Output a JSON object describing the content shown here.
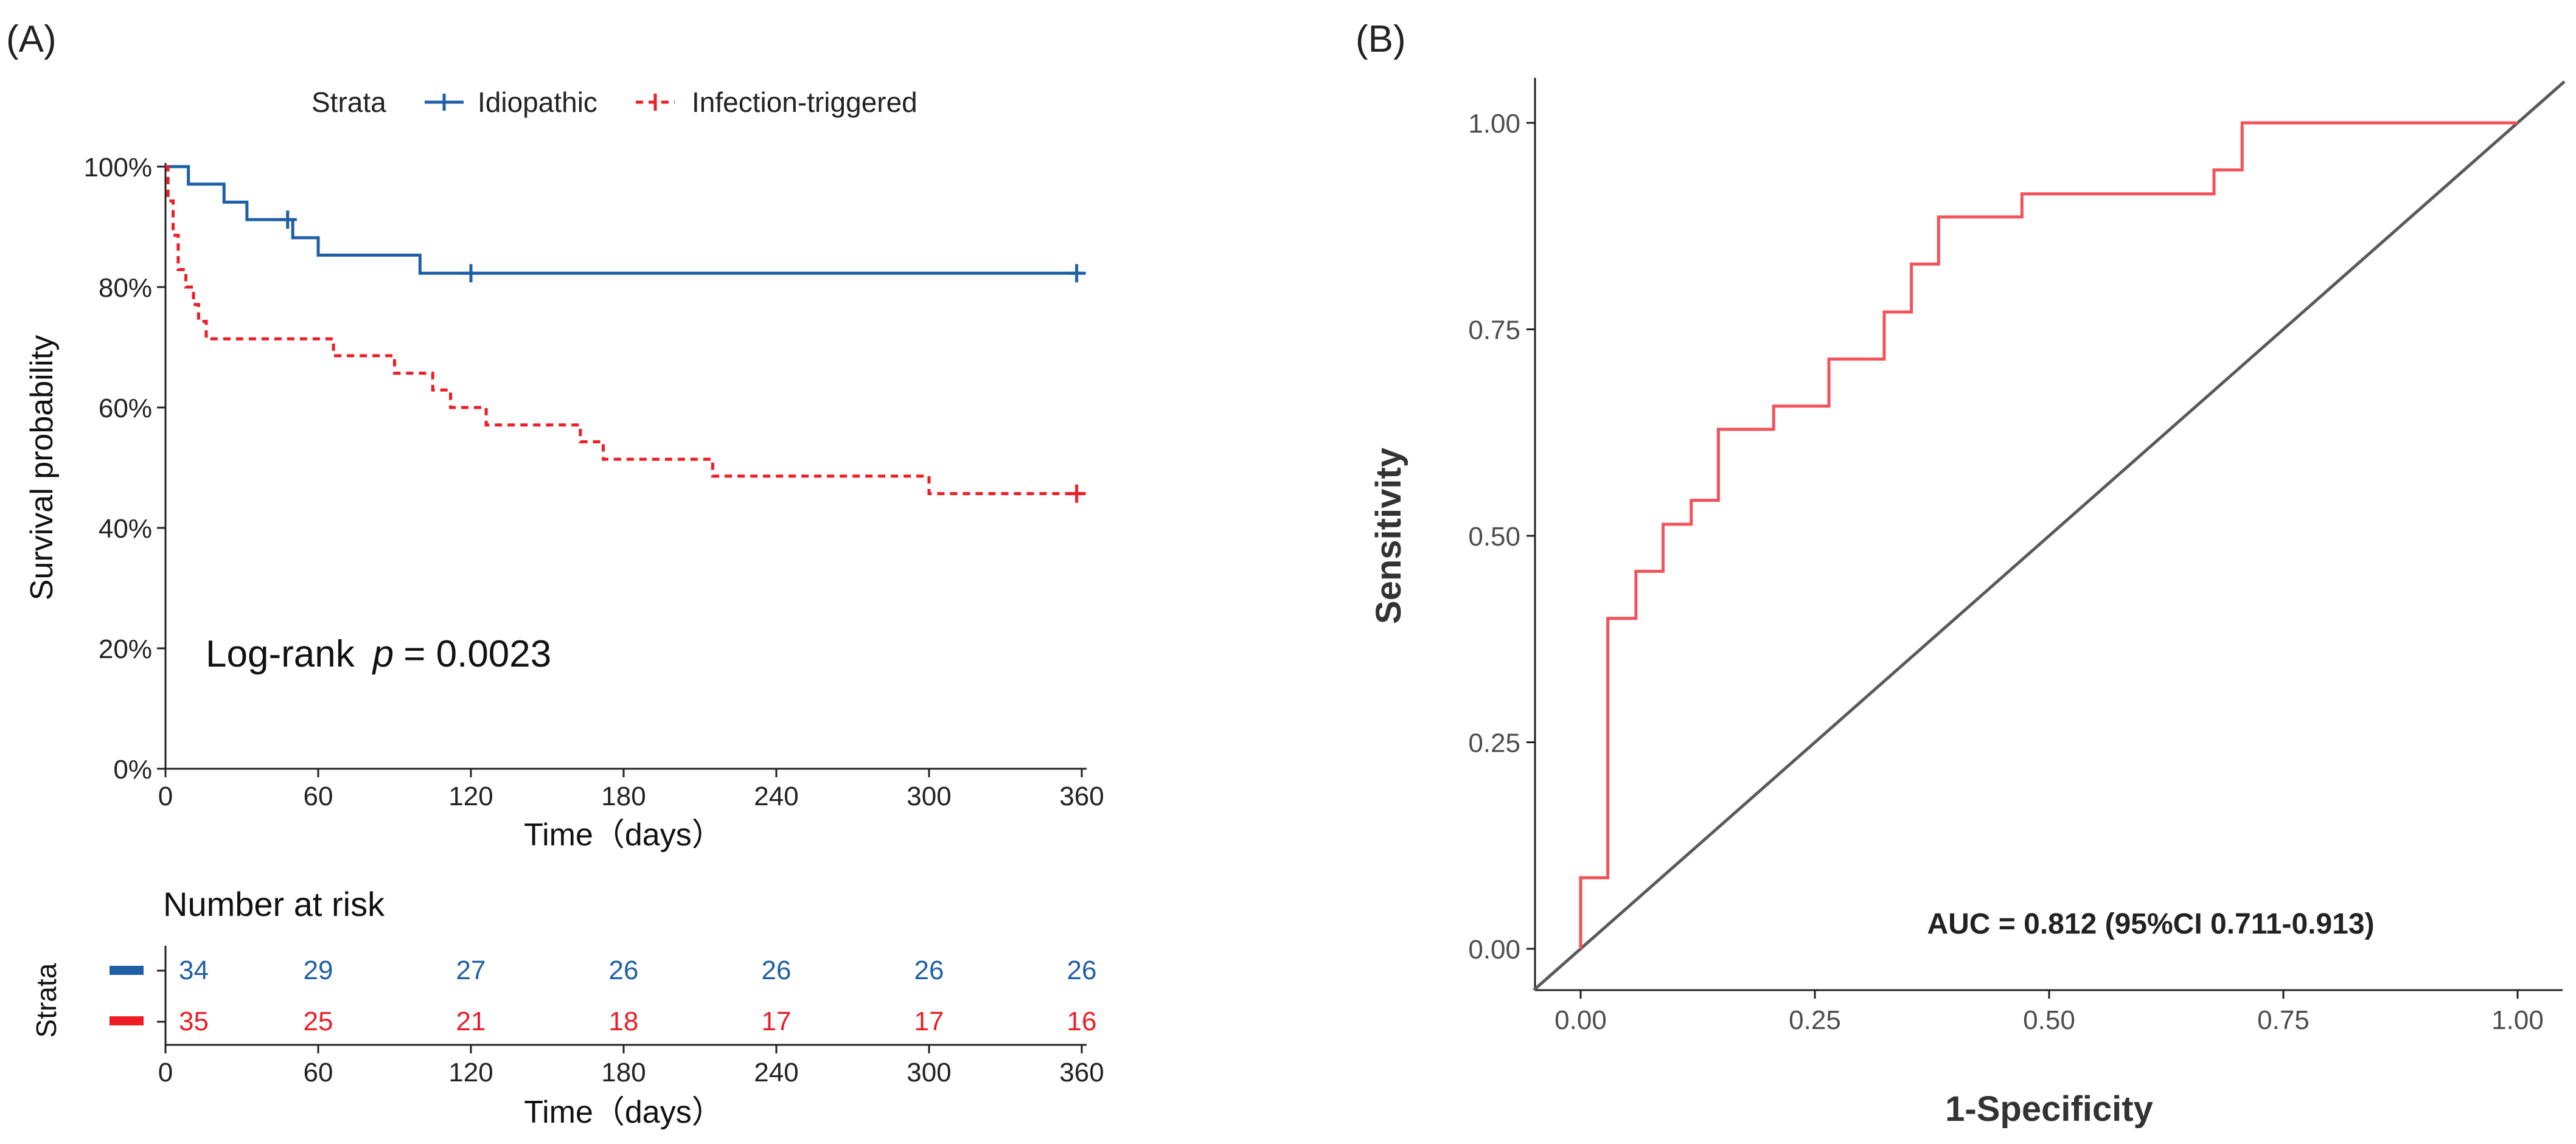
{
  "panel_a": {
    "label": "(A)",
    "legend_title": "Strata",
    "legend_idiopathic": "Idiopathic",
    "legend_infection": "Infection-triggered",
    "logrank_prefix": "Log-rank",
    "logrank_p_symbol": "p",
    "logrank_value": "= 0.0023",
    "risk_title": "Number at risk",
    "risk_ylabel": "Strata"
  },
  "panel_b": {
    "label": "(B)"
  },
  "colors": {
    "idiopathic": "#1f5fa6",
    "infection": "#ee1c25",
    "roc": "#f4525a",
    "diagonal": "#5a5a5a",
    "axis": "#222222",
    "tick_text": "#4d4d4d"
  },
  "chart_data": [
    {
      "type": "line",
      "subtype": "kaplan-meier",
      "title": "",
      "xlabel": "Time（days）",
      "ylabel": "Survival probability",
      "xlim": [
        0,
        360
      ],
      "ylim": [
        0,
        1
      ],
      "x_ticks": [
        0,
        60,
        120,
        180,
        240,
        300,
        360
      ],
      "x_tick_labels": [
        "0",
        "60",
        "120",
        "180",
        "240",
        "300",
        "360"
      ],
      "y_ticks": [
        0,
        0.2,
        0.4,
        0.6,
        0.8,
        1.0
      ],
      "y_tick_labels": [
        "0%",
        "20%",
        "40%",
        "60%",
        "80%",
        "100%"
      ],
      "legend": "top",
      "series": [
        {
          "name": "Idiopathic",
          "line_style": "solid",
          "steps": [
            [
              0,
              1.0
            ],
            [
              9,
              0.971
            ],
            [
              23,
              0.941
            ],
            [
              32,
              0.912
            ],
            [
              50,
              0.882
            ],
            [
              60,
              0.853
            ],
            [
              100,
              0.823
            ],
            [
              360,
              0.823
            ]
          ],
          "censored": [
            [
              48,
              0.912
            ],
            [
              120,
              0.823
            ],
            [
              358,
              0.823
            ]
          ]
        },
        {
          "name": "Infection-triggered",
          "line_style": "dashed",
          "steps": [
            [
              0,
              1.0
            ],
            [
              1,
              0.943
            ],
            [
              3,
              0.886
            ],
            [
              5,
              0.829
            ],
            [
              8,
              0.8
            ],
            [
              11,
              0.771
            ],
            [
              13,
              0.743
            ],
            [
              16,
              0.714
            ],
            [
              66,
              0.686
            ],
            [
              90,
              0.657
            ],
            [
              105,
              0.629
            ],
            [
              112,
              0.6
            ],
            [
              126,
              0.571
            ],
            [
              163,
              0.543
            ],
            [
              172,
              0.514
            ],
            [
              215,
              0.486
            ],
            [
              300,
              0.457
            ],
            [
              360,
              0.457
            ]
          ],
          "censored": [
            [
              358,
              0.457
            ]
          ]
        }
      ],
      "annotation": "Log-rank p = 0.0023"
    },
    {
      "type": "table",
      "title": "Number at risk",
      "ylabel": "Strata",
      "xlabel": "Time（days）",
      "x": [
        0,
        60,
        120,
        180,
        240,
        300,
        360
      ],
      "x_tick_labels": [
        "0",
        "60",
        "120",
        "180",
        "240",
        "300",
        "360"
      ],
      "rows": [
        {
          "name": "Idiopathic",
          "values": [
            34,
            29,
            27,
            26,
            26,
            26,
            26
          ]
        },
        {
          "name": "Infection-triggered",
          "values": [
            35,
            25,
            21,
            18,
            17,
            17,
            16
          ]
        }
      ]
    },
    {
      "type": "line",
      "subtype": "roc",
      "title": "",
      "xlabel": "1-Specificity",
      "ylabel": "Sensitivity",
      "xlim": [
        0,
        1
      ],
      "ylim": [
        0,
        1
      ],
      "x_ticks": [
        0,
        0.25,
        0.5,
        0.75,
        1.0
      ],
      "x_tick_labels": [
        "0.00",
        "0.25",
        "0.50",
        "0.75",
        "1.00"
      ],
      "y_ticks": [
        0,
        0.25,
        0.5,
        0.75,
        1.0
      ],
      "y_tick_labels": [
        "0.00",
        "0.25",
        "0.50",
        "0.75",
        "1.00"
      ],
      "series": [
        {
          "name": "ROC",
          "points": [
            [
              0,
              0
            ],
            [
              0,
              0.086
            ],
            [
              0.029,
              0.086
            ],
            [
              0.029,
              0.4
            ],
            [
              0.059,
              0.4
            ],
            [
              0.059,
              0.457
            ],
            [
              0.088,
              0.457
            ],
            [
              0.088,
              0.514
            ],
            [
              0.118,
              0.514
            ],
            [
              0.118,
              0.543
            ],
            [
              0.147,
              0.543
            ],
            [
              0.147,
              0.629
            ],
            [
              0.206,
              0.629
            ],
            [
              0.206,
              0.657
            ],
            [
              0.265,
              0.657
            ],
            [
              0.265,
              0.714
            ],
            [
              0.324,
              0.714
            ],
            [
              0.324,
              0.771
            ],
            [
              0.353,
              0.771
            ],
            [
              0.353,
              0.829
            ],
            [
              0.382,
              0.829
            ],
            [
              0.382,
              0.886
            ],
            [
              0.471,
              0.886
            ],
            [
              0.471,
              0.914
            ],
            [
              0.676,
              0.914
            ],
            [
              0.676,
              0.943
            ],
            [
              0.706,
              0.943
            ],
            [
              0.706,
              1.0
            ],
            [
              1.0,
              1.0
            ]
          ]
        },
        {
          "name": "Reference",
          "points": [
            [
              -0.05,
              -0.05
            ],
            [
              1.05,
              1.05
            ]
          ]
        }
      ],
      "annotation": "AUC = 0.812 (95%CI 0.711-0.913)"
    }
  ]
}
